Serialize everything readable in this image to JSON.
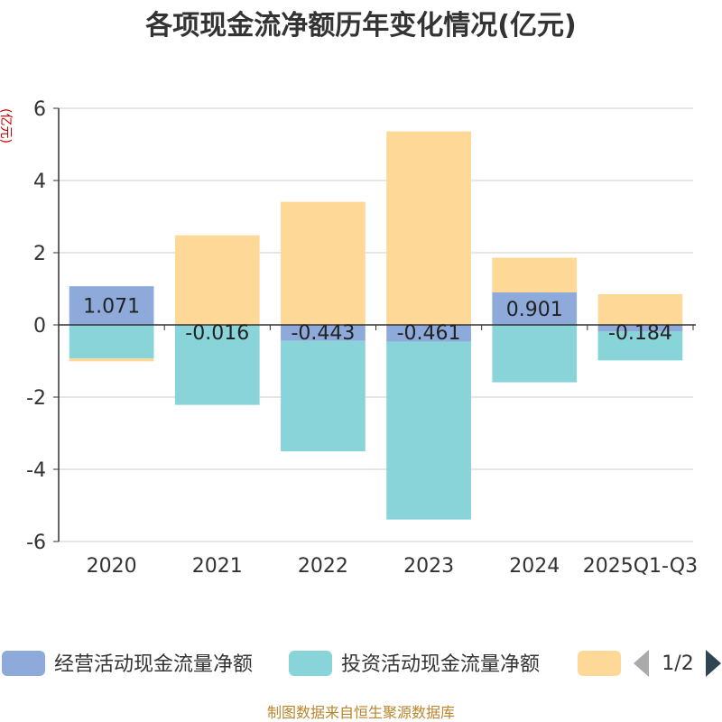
{
  "chart_data": {
    "type": "bar",
    "stacked": true,
    "title": "各项现金流净额历年变化情况(亿元)",
    "ylabel": "(亿元)",
    "ylim": [
      -6,
      6
    ],
    "yticks": [
      6,
      4,
      2,
      0,
      -2,
      -4,
      -6
    ],
    "categories": [
      "2020",
      "2021",
      "2022",
      "2023",
      "2024",
      "2025Q1-Q3"
    ],
    "series": [
      {
        "name": "经营活动现金流量净额",
        "color": "#8eaadb",
        "values": [
          1.071,
          -0.016,
          -0.443,
          -0.461,
          0.901,
          -0.184
        ],
        "labels": [
          "1.071",
          "-0.016",
          "-0.443",
          "-0.461",
          "0.901",
          "-0.184"
        ]
      },
      {
        "name": "投资活动现金流量净额",
        "color": "#88d4d8",
        "values": [
          -0.93,
          -2.2,
          -3.06,
          -4.93,
          -1.59,
          -0.8
        ]
      },
      {
        "name": "",
        "color": "#fed897",
        "values": [
          -0.08,
          2.48,
          3.41,
          5.36,
          0.96,
          0.85
        ]
      }
    ],
    "legend": {
      "position": "bottom",
      "page": "1/2"
    },
    "source": "制图数据来自恒生聚源数据库"
  }
}
